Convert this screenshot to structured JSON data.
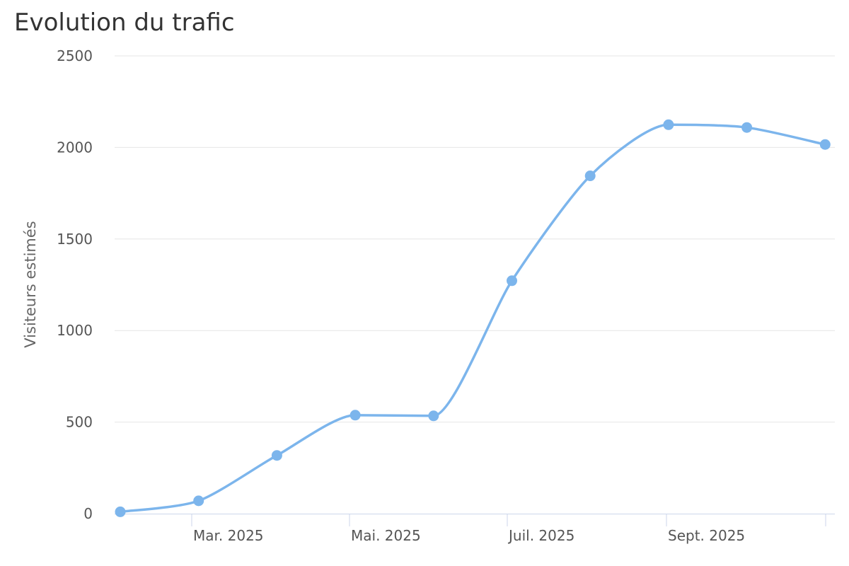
{
  "chart_data": {
    "type": "line",
    "title": "Evolution du trafic",
    "ylabel": "Visiteurs estimés",
    "xlabel": "",
    "ylim": [
      0,
      2500
    ],
    "yticks": [
      0,
      500,
      1000,
      1500,
      2000,
      2500
    ],
    "x_tick_labels": [
      {
        "label": "Mar. 2025",
        "index": 1
      },
      {
        "label": "Mai. 2025",
        "index": 3
      },
      {
        "label": "Juil. 2025",
        "index": 5
      },
      {
        "label": "Sept. 2025",
        "index": 7
      }
    ],
    "grid": true,
    "legend": "none",
    "color": "#7cb5ec",
    "series": [
      {
        "values": [
          10,
          70,
          318,
          538,
          534,
          1272,
          1845,
          2124,
          2109,
          2016
        ]
      }
    ]
  }
}
